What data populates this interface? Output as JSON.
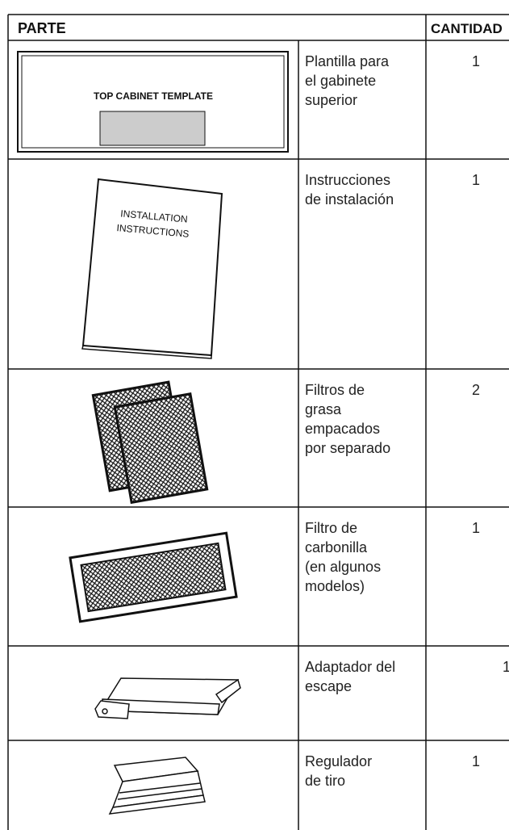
{
  "table": {
    "header": [
      "PARTE",
      "CANTIDAD"
    ],
    "rows": [
      {
        "image_text": [
          "TOP CABINET TEMPLATE"
        ],
        "description": [
          "Plantilla para",
          "el gabinete",
          "superior"
        ],
        "quantity": "1"
      },
      {
        "image_text": [
          "INSTALLATION",
          "INSTRUCTIONS"
        ],
        "description": [
          "Instrucciones",
          "de instalación"
        ],
        "quantity": "1"
      },
      {
        "description": [
          "Filtros de",
          "grasa",
          "empacados",
          "por separado"
        ],
        "quantity": "2"
      },
      {
        "description": [
          "Filtro de",
          "carbonilla",
          "(en algunos",
          "modelos)"
        ],
        "quantity": "1"
      },
      {
        "description": [
          "Adaptador del",
          "escape"
        ],
        "quantity": "1"
      },
      {
        "description": [
          "Regulador",
          "de tiro"
        ],
        "quantity": "1"
      }
    ]
  }
}
